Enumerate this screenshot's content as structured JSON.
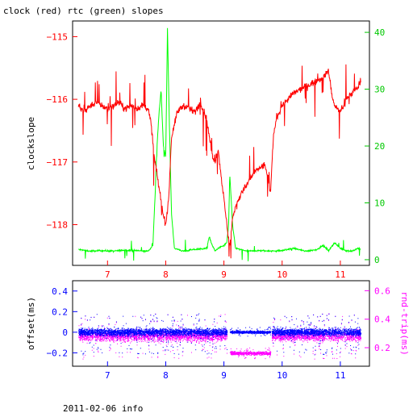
{
  "title": "clock (red) rtc (green) slopes",
  "footer": "2011-02-06 info",
  "chart_data": [
    {
      "type": "line",
      "ylabel": "clockslope",
      "y2label": "",
      "xlim": [
        6.4,
        11.5
      ],
      "ylim": [
        -118.65,
        -114.75
      ],
      "y2lim": [
        -1,
        42
      ],
      "x_ticks": [
        7,
        8,
        9,
        10,
        11
      ],
      "y_ticks": [
        -118,
        -117,
        -116,
        -115
      ],
      "y2_ticks": [
        0,
        10,
        20,
        30,
        40
      ],
      "series": [
        {
          "name": "clock",
          "color": "#ff0000",
          "axis": "left",
          "x": [
            6.5,
            6.6,
            6.7,
            6.8,
            6.9,
            7.0,
            7.1,
            7.2,
            7.3,
            7.4,
            7.5,
            7.6,
            7.7,
            7.75,
            7.8,
            7.85,
            7.9,
            7.95,
            8.0,
            8.05,
            8.1,
            8.2,
            8.3,
            8.4,
            8.5,
            8.6,
            8.7,
            8.75,
            8.8,
            8.85,
            8.9,
            8.95,
            9.0,
            9.05,
            9.1,
            9.15,
            9.2,
            9.3,
            9.4,
            9.5,
            9.6,
            9.7,
            9.75,
            9.8,
            9.85,
            9.9,
            10.0,
            10.1,
            10.2,
            10.3,
            10.4,
            10.5,
            10.6,
            10.7,
            10.8,
            10.85,
            10.9,
            11.0,
            11.1,
            11.2,
            11.3,
            11.35
          ],
          "values": [
            -116.1,
            -116.2,
            -116.1,
            -116.05,
            -116.1,
            -116.15,
            -116.1,
            -116.05,
            -116.15,
            -116.1,
            -116.15,
            -116.1,
            -116.15,
            -116.4,
            -116.9,
            -117.2,
            -117.5,
            -117.8,
            -118.0,
            -117.6,
            -116.6,
            -116.2,
            -116.1,
            -116.15,
            -116.2,
            -116.05,
            -116.3,
            -116.6,
            -116.9,
            -117.0,
            -116.8,
            -117.2,
            -117.6,
            -118.0,
            -118.35,
            -117.9,
            -117.7,
            -117.5,
            -117.35,
            -117.2,
            -117.1,
            -117.05,
            -117.2,
            -117.5,
            -116.6,
            -116.3,
            -116.1,
            -116.0,
            -115.9,
            -115.85,
            -115.8,
            -115.75,
            -115.7,
            -115.65,
            -115.55,
            -115.9,
            -116.1,
            -116.2,
            -116.0,
            -115.9,
            -115.8,
            -115.7
          ]
        },
        {
          "name": "rtc",
          "color": "#00ff00",
          "axis": "right",
          "x": [
            6.5,
            6.7,
            6.9,
            7.1,
            7.3,
            7.5,
            7.7,
            7.78,
            7.82,
            7.85,
            7.88,
            7.92,
            7.96,
            8.0,
            8.03,
            8.06,
            8.1,
            8.15,
            8.3,
            8.5,
            8.7,
            8.75,
            8.8,
            8.85,
            8.9,
            9.0,
            9.05,
            9.08,
            9.1,
            9.15,
            9.2,
            9.4,
            9.6,
            9.8,
            10.0,
            10.2,
            10.4,
            10.6,
            10.7,
            10.8,
            10.9,
            11.0,
            11.1,
            11.2,
            11.3,
            11.35
          ],
          "values": [
            1.8,
            1.5,
            1.6,
            1.5,
            1.7,
            1.6,
            1.5,
            2.5,
            12,
            20,
            25,
            30,
            20,
            18,
            41,
            25,
            8,
            2,
            1.5,
            1.8,
            2,
            4,
            2.5,
            1.5,
            2,
            2.5,
            3,
            6,
            15,
            6,
            2,
            1.5,
            1.6,
            1.5,
            1.6,
            2,
            1.5,
            1.8,
            2.5,
            1.6,
            3,
            2,
            1.6,
            1.5,
            2,
            1.8
          ]
        }
      ]
    },
    {
      "type": "scatter",
      "ylabel": "offset(ms)",
      "y2label": "rnd-trip(ms)",
      "xlim": [
        6.4,
        11.5
      ],
      "ylim": [
        -0.33,
        0.5
      ],
      "y2lim": [
        0.07,
        0.67
      ],
      "x_ticks": [
        7,
        8,
        9,
        10,
        11
      ],
      "y_ticks": [
        -0.2,
        0,
        0.2,
        0.4
      ],
      "y2_ticks": [
        0.2,
        0.4,
        0.6
      ],
      "series": [
        {
          "name": "offset",
          "color": "#0000ff",
          "axis": "left",
          "segments": [
            {
              "x": [
                6.5,
                9.05
              ],
              "center": 0.0,
              "spread": 0.06,
              "outlier_min": -0.22,
              "outlier_max": 0.18
            },
            {
              "x": [
                9.1,
                9.8
              ],
              "center": 0.0,
              "spread": 0.02,
              "outlier_min": -0.05,
              "outlier_max": 0.05
            },
            {
              "x": [
                9.82,
                11.35
              ],
              "center": 0.0,
              "spread": 0.06,
              "outlier_min": -0.22,
              "outlier_max": 0.18
            }
          ]
        },
        {
          "name": "rnd-trip",
          "color": "#ff00ff",
          "axis": "right",
          "segments": [
            {
              "x": [
                6.5,
                9.05
              ],
              "center": 0.28,
              "spread": 0.06,
              "outlier_min": 0.12,
              "outlier_max": 0.44
            },
            {
              "x": [
                9.1,
                9.8
              ],
              "center": 0.16,
              "spread": 0.02,
              "outlier_min": 0.12,
              "outlier_max": 0.2
            },
            {
              "x": [
                9.82,
                11.35
              ],
              "center": 0.28,
              "spread": 0.06,
              "outlier_min": 0.12,
              "outlier_max": 0.44
            }
          ]
        }
      ]
    }
  ]
}
